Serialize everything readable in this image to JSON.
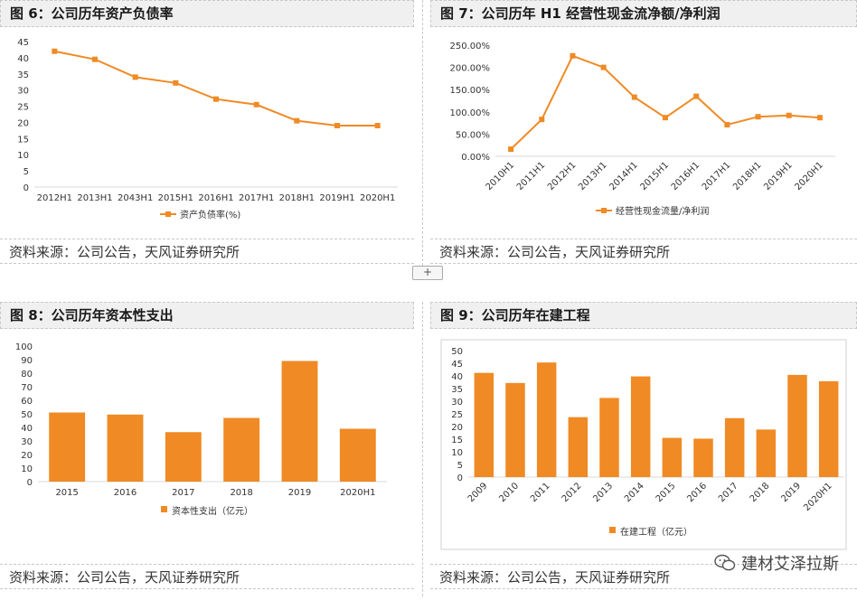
{
  "source_text": "资料来源：公司公告，天风证券研究所",
  "add_button": "+",
  "watermark": "建材艾泽拉斯",
  "watermark_icon": "wechat-icon",
  "accent": "#f08a24",
  "chart_data": [
    {
      "id": "fig6",
      "type": "line",
      "title": "图 6：公司历年资产负债率",
      "categories": [
        "2012H1",
        "2013H1",
        "2043H1",
        "2015H1",
        "2016H1",
        "2017H1",
        "2018H1",
        "2019H1",
        "2020H1"
      ],
      "series": [
        {
          "name": "资产负债率(%)",
          "values": [
            42,
            39.5,
            34,
            32.2,
            27.2,
            25.5,
            20.5,
            19,
            19
          ]
        }
      ],
      "ylim": [
        0,
        45
      ],
      "yticks": [
        0,
        5,
        10,
        15,
        20,
        25,
        30,
        35,
        40,
        45
      ],
      "legend": "bottom"
    },
    {
      "id": "fig7",
      "type": "line",
      "title": "图 7：公司历年 H1 经营性现金流净额/净利润",
      "categories": [
        "2010H1",
        "2011H1",
        "2012H1",
        "2013H1",
        "2014H1",
        "2015H1",
        "2016H1",
        "2017H1",
        "2018H1",
        "2019H1",
        "2020H1"
      ],
      "series": [
        {
          "name": "经营性现金流量/净利润",
          "values": [
            16,
            83,
            226,
            200,
            133,
            87,
            135,
            71,
            89,
            92,
            87
          ]
        }
      ],
      "ylim": [
        0,
        250
      ],
      "yticks": [
        0,
        50,
        100,
        150,
        200,
        250
      ],
      "ytick_labels": [
        "0.00%",
        "50.00%",
        "100.00%",
        "150.00%",
        "200.00%",
        "250.00%"
      ],
      "legend": "bottom"
    },
    {
      "id": "fig8",
      "type": "bar",
      "title": "图 8：公司历年资本性支出",
      "categories": [
        "2015",
        "2016",
        "2017",
        "2018",
        "2019",
        "2020H1"
      ],
      "series": [
        {
          "name": "资本性支出（亿元）",
          "values": [
            51,
            49.5,
            36.5,
            47,
            89,
            39
          ]
        }
      ],
      "ylim": [
        0,
        100
      ],
      "yticks": [
        0,
        10,
        20,
        30,
        40,
        50,
        60,
        70,
        80,
        90,
        100
      ],
      "legend": "bottom"
    },
    {
      "id": "fig9",
      "type": "bar",
      "title": "图 9：公司历年在建工程",
      "categories": [
        "2009",
        "2010",
        "2011",
        "2012",
        "2013",
        "2014",
        "2015",
        "2016",
        "2017",
        "2018",
        "2019",
        "2020H1"
      ],
      "series": [
        {
          "name": "在建工程（亿元）",
          "values": [
            41.2,
            37.2,
            45.3,
            23.7,
            31.3,
            39.8,
            15.5,
            15.2,
            23.3,
            18.8,
            40.4,
            37.9
          ]
        }
      ],
      "ylim": [
        0,
        50
      ],
      "yticks": [
        0,
        5,
        10,
        15,
        20,
        25,
        30,
        35,
        40,
        45,
        50
      ],
      "legend": "bottom"
    }
  ]
}
